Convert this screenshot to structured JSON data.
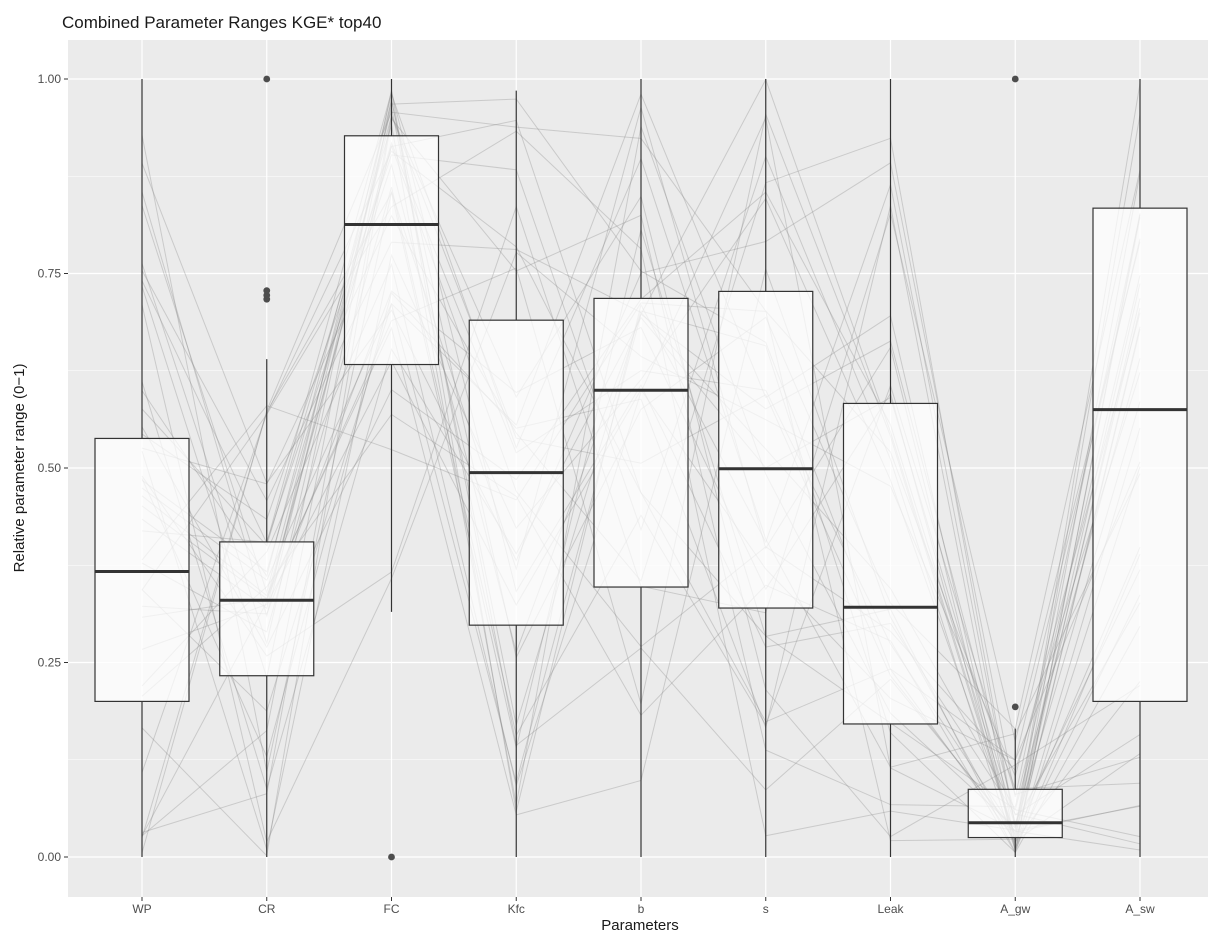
{
  "chart_data": {
    "type": "boxplot",
    "title": "Combined Parameter Ranges KGE* top40",
    "xlabel": "Parameters",
    "ylabel": "Relative parameter range (0−1)",
    "ylim": [
      0,
      1.0
    ],
    "yticks": [
      "0.00",
      "0.25",
      "0.50",
      "0.75",
      "1.00"
    ],
    "grid": true,
    "categories": [
      "WP",
      "CR",
      "FC",
      "Kfc",
      "b",
      "s",
      "Leak",
      "A_gw",
      "A_sw"
    ],
    "boxes": [
      {
        "name": "WP",
        "min": 0.0,
        "q1": 0.2,
        "median": 0.367,
        "q3": 0.538,
        "max": 1.0,
        "outliers": []
      },
      {
        "name": "CR",
        "min": 0.0,
        "q1": 0.233,
        "median": 0.33,
        "q3": 0.405,
        "max": 0.64,
        "outliers": [
          0.717,
          0.722,
          0.728,
          1.0
        ]
      },
      {
        "name": "FC",
        "min": 0.315,
        "q1": 0.633,
        "median": 0.813,
        "q3": 0.927,
        "max": 1.0,
        "outliers": [
          0.0
        ]
      },
      {
        "name": "Kfc",
        "min": 0.0,
        "q1": 0.298,
        "median": 0.494,
        "q3": 0.69,
        "max": 0.985,
        "outliers": []
      },
      {
        "name": "b",
        "min": 0.0,
        "q1": 0.347,
        "median": 0.6,
        "q3": 0.718,
        "max": 1.0,
        "outliers": []
      },
      {
        "name": "s",
        "min": 0.0,
        "q1": 0.32,
        "median": 0.499,
        "q3": 0.727,
        "max": 1.0,
        "outliers": []
      },
      {
        "name": "Leak",
        "min": 0.0,
        "q1": 0.171,
        "median": 0.321,
        "q3": 0.583,
        "max": 1.0,
        "outliers": []
      },
      {
        "name": "A_gw",
        "min": 0.0,
        "q1": 0.025,
        "median": 0.044,
        "q3": 0.087,
        "max": 0.165,
        "outliers": [
          0.193,
          1.0
        ]
      },
      {
        "name": "A_sw",
        "min": 0.0,
        "q1": 0.2,
        "median": 0.575,
        "q3": 0.834,
        "max": 1.0,
        "outliers": []
      }
    ],
    "parallel_lines_count": 40,
    "colors": {
      "panel": "#ebebeb",
      "grid": "#ffffff",
      "box_fill": "#ffffff",
      "box_stroke": "#333333",
      "lines": "#8c8c8c",
      "points": "#4d4d4d"
    }
  }
}
